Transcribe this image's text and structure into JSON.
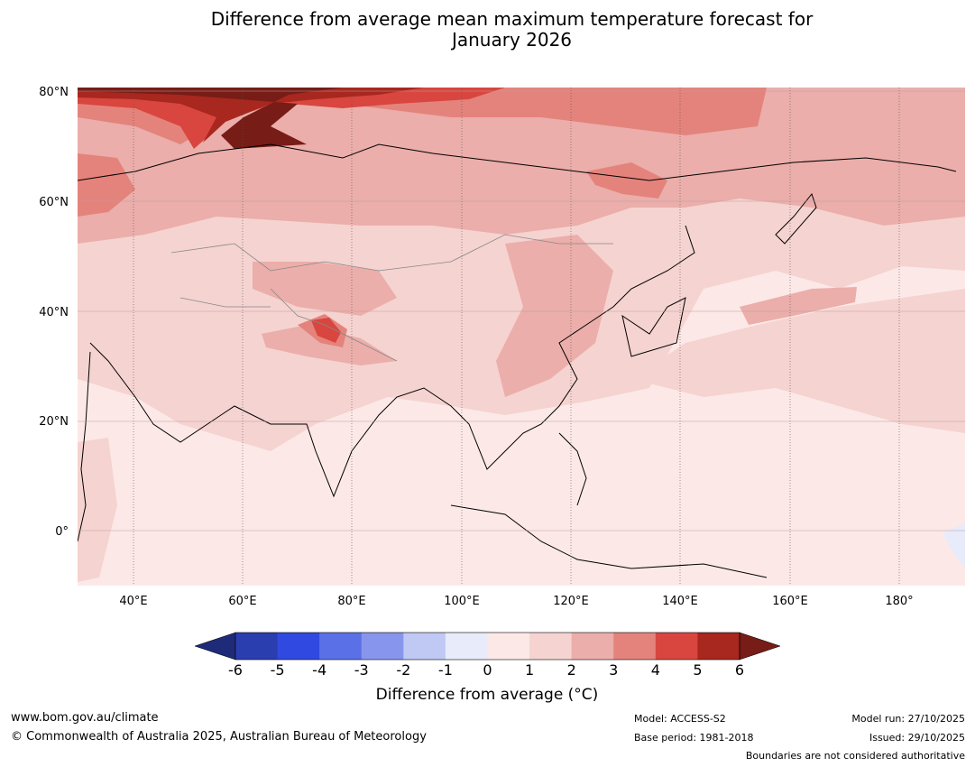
{
  "title": {
    "line1": "Difference from average mean maximum temperature forecast for",
    "line2": "January 2026"
  },
  "map": {
    "latitude_labels": [
      "80°N",
      "60°N",
      "40°N",
      "20°N",
      "0°"
    ],
    "longitude_labels": [
      "40°E",
      "60°E",
      "80°E",
      "100°E",
      "120°E",
      "140°E",
      "160°E",
      "180°"
    ],
    "extent": {
      "lon_min": 30,
      "lon_max": 192,
      "lat_min": -10,
      "lat_max": 80
    }
  },
  "colorbar": {
    "ticks": [
      "-6",
      "-5",
      "-4",
      "-3",
      "-2",
      "-1",
      "0",
      "1",
      "2",
      "3",
      "4",
      "5",
      "6"
    ],
    "colors": [
      "#1e2b78",
      "#2a3eb0",
      "#3049e0",
      "#5a70e6",
      "#8796ec",
      "#c0c8f4",
      "#e8ebfa",
      "#fce9e7",
      "#f5d3d0",
      "#ebaeaa",
      "#e4837c",
      "#d8463f",
      "#a8271f",
      "#771c16"
    ],
    "label": "Difference from average ($^\\circ$C)",
    "label_display": "Difference from average (°C)"
  },
  "footer": {
    "website": "www.bom.gov.au/climate",
    "copyright": "© Commonwealth of Australia 2025, Australian Bureau of Meteorology",
    "model": "Model: ACCESS-S2",
    "base_period": "Base period: 1981-2018",
    "model_run": "Model run: 27/10/2025",
    "issued": "Issued: 29/10/2025",
    "boundaries_note": "Boundaries are not considered authoritative"
  }
}
